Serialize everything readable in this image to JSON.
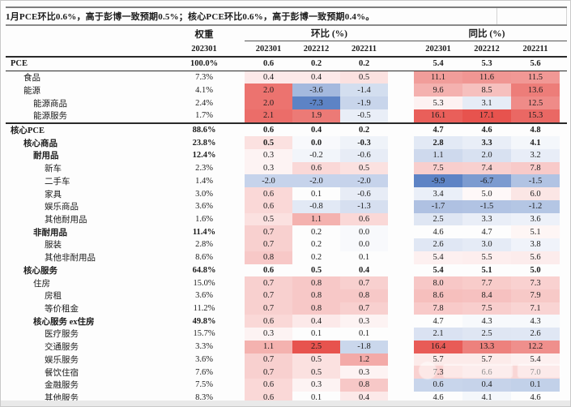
{
  "title": "1月PCE环比0.6%，高于彭博一致预期0.5%；核心PCE环比0.6%，高于彭博一致预期0.4%。",
  "colors": {
    "heat_red": "#e7534e",
    "heat_blue": "#5d83c5",
    "text": "#1c1c1c",
    "border_dark": "#2a2a2a"
  },
  "heat_scale": {
    "mom": {
      "min": -7.3,
      "mid": 0.2,
      "max": 2.5
    },
    "yoy": {
      "min": -9.9,
      "mid": 4.7,
      "max": 17.1
    }
  },
  "chart_data": {
    "type": "table",
    "title": "1月PCE环比0.6%，高于彭博一致预期0.5%；核心PCE环比0.6%，高于彭博一致预期0.4%。",
    "col_groups": {
      "weight_label": "权重",
      "mom_label": "环比 (%)",
      "yoy_label": "同比 (%)"
    },
    "weight_period": "202301",
    "periods": [
      "202301",
      "202212",
      "202211"
    ],
    "rows": [
      {
        "label": "PCE",
        "indent": 0,
        "weight": "100.0%",
        "mom": [
          0.6,
          0.2,
          0.2
        ],
        "yoy": [
          5.4,
          5.3,
          5.6
        ],
        "bold": true,
        "emph": true,
        "fill": false,
        "border_bottom": "thin"
      },
      {
        "label": "食品",
        "indent": 1,
        "weight": "7.3%",
        "mom": [
          0.4,
          0.4,
          0.5
        ],
        "yoy": [
          11.1,
          11.6,
          11.5
        ],
        "bold": false,
        "emph": false,
        "fill": true,
        "border_bottom": ""
      },
      {
        "label": "能源",
        "indent": 1,
        "weight": "4.1%",
        "mom": [
          2.0,
          -3.6,
          -1.4
        ],
        "yoy": [
          9.6,
          8.5,
          13.6
        ],
        "bold": false,
        "emph": false,
        "fill": true,
        "border_bottom": ""
      },
      {
        "label": "能源商品",
        "indent": 2,
        "weight": "2.4%",
        "mom": [
          2.0,
          -7.3,
          -1.9
        ],
        "yoy": [
          5.3,
          3.1,
          12.5
        ],
        "bold": false,
        "emph": false,
        "fill": true,
        "border_bottom": ""
      },
      {
        "label": "能源服务",
        "indent": 2,
        "weight": "1.7%",
        "mom": [
          2.1,
          1.9,
          -0.5
        ],
        "yoy": [
          16.1,
          17.1,
          15.3
        ],
        "bold": false,
        "emph": false,
        "fill": true,
        "border_bottom": "thick"
      },
      {
        "label": "核心PCE",
        "indent": 0,
        "weight": "88.6%",
        "mom": [
          0.6,
          0.4,
          0.2
        ],
        "yoy": [
          4.7,
          4.6,
          4.8
        ],
        "bold": true,
        "emph": true,
        "fill": false,
        "border_bottom": ""
      },
      {
        "label": "核心商品",
        "indent": 1,
        "weight": "23.8%",
        "mom": [
          0.5,
          0.0,
          -0.3
        ],
        "yoy": [
          2.8,
          3.3,
          4.1
        ],
        "bold": true,
        "emph": true,
        "fill": true,
        "border_bottom": ""
      },
      {
        "label": "耐用品",
        "indent": 2,
        "weight": "12.4%",
        "mom": [
          0.3,
          -0.2,
          -0.6
        ],
        "yoy": [
          1.1,
          2.0,
          3.2
        ],
        "bold": true,
        "emph": false,
        "fill": true,
        "border_bottom": ""
      },
      {
        "label": "新车",
        "indent": 3,
        "weight": "2.3%",
        "mom": [
          0.3,
          0.6,
          0.5
        ],
        "yoy": [
          7.5,
          7.4,
          7.8
        ],
        "bold": false,
        "emph": false,
        "fill": true,
        "border_bottom": ""
      },
      {
        "label": "二手车",
        "indent": 3,
        "weight": "1.4%",
        "mom": [
          -2.0,
          -2.0,
          -2.0
        ],
        "yoy": [
          -9.9,
          -6.7,
          -1.5
        ],
        "bold": false,
        "emph": false,
        "fill": true,
        "border_bottom": ""
      },
      {
        "label": "家具",
        "indent": 3,
        "weight": "3.0%",
        "mom": [
          0.6,
          0.1,
          -0.6
        ],
        "yoy": [
          3.4,
          5.0,
          6.0
        ],
        "bold": false,
        "emph": false,
        "fill": true,
        "border_bottom": ""
      },
      {
        "label": "娱乐商品",
        "indent": 3,
        "weight": "3.6%",
        "mom": [
          0.6,
          -0.8,
          -1.3
        ],
        "yoy": [
          -1.7,
          -1.5,
          -1.2
        ],
        "bold": false,
        "emph": false,
        "fill": true,
        "border_bottom": ""
      },
      {
        "label": "其他耐用品",
        "indent": 3,
        "weight": "1.6%",
        "mom": [
          0.5,
          1.1,
          0.6
        ],
        "yoy": [
          2.5,
          3.3,
          3.6
        ],
        "bold": false,
        "emph": false,
        "fill": true,
        "border_bottom": ""
      },
      {
        "label": "非耐用品",
        "indent": 2,
        "weight": "11.4%",
        "mom": [
          0.7,
          0.2,
          0.0
        ],
        "yoy": [
          4.6,
          4.7,
          5.1
        ],
        "bold": true,
        "emph": false,
        "fill": true,
        "border_bottom": ""
      },
      {
        "label": "服装",
        "indent": 3,
        "weight": "2.8%",
        "mom": [
          0.7,
          0.2,
          0.0
        ],
        "yoy": [
          2.6,
          3.0,
          3.8
        ],
        "bold": false,
        "emph": false,
        "fill": true,
        "border_bottom": ""
      },
      {
        "label": "其他非耐用品",
        "indent": 3,
        "weight": "8.6%",
        "mom": [
          0.8,
          0.2,
          0.1
        ],
        "yoy": [
          5.4,
          5.5,
          5.6
        ],
        "bold": false,
        "emph": false,
        "fill": true,
        "border_bottom": ""
      },
      {
        "label": "核心服务",
        "indent": 1,
        "weight": "64.8%",
        "mom": [
          0.6,
          0.5,
          0.4
        ],
        "yoy": [
          5.4,
          5.1,
          5.0
        ],
        "bold": true,
        "emph": true,
        "fill": false,
        "border_bottom": ""
      },
      {
        "label": "住房",
        "indent": 2,
        "weight": "15.0%",
        "mom": [
          0.7,
          0.8,
          0.7
        ],
        "yoy": [
          8.0,
          7.7,
          7.3
        ],
        "bold": false,
        "emph": false,
        "fill": true,
        "border_bottom": ""
      },
      {
        "label": "房租",
        "indent": 3,
        "weight": "3.6%",
        "mom": [
          0.7,
          0.8,
          0.8
        ],
        "yoy": [
          8.6,
          8.4,
          7.9
        ],
        "bold": false,
        "emph": false,
        "fill": true,
        "border_bottom": ""
      },
      {
        "label": "等价租金",
        "indent": 3,
        "weight": "11.2%",
        "mom": [
          0.7,
          0.8,
          0.7
        ],
        "yoy": [
          7.8,
          7.5,
          7.1
        ],
        "bold": false,
        "emph": false,
        "fill": true,
        "border_bottom": ""
      },
      {
        "label": "核心服务 ex住房",
        "indent": 2,
        "weight": "49.8%",
        "mom": [
          0.6,
          0.4,
          0.3
        ],
        "yoy": [
          4.7,
          4.3,
          4.3
        ],
        "bold": true,
        "emph": false,
        "fill": true,
        "border_bottom": ""
      },
      {
        "label": "医疗服务",
        "indent": 3,
        "weight": "15.7%",
        "mom": [
          0.3,
          0.1,
          0.1
        ],
        "yoy": [
          2.1,
          2.5,
          2.6
        ],
        "bold": false,
        "emph": false,
        "fill": true,
        "border_bottom": ""
      },
      {
        "label": "交通服务",
        "indent": 3,
        "weight": "3.3%",
        "mom": [
          1.1,
          2.5,
          -1.8
        ],
        "yoy": [
          16.4,
          13.3,
          12.2
        ],
        "bold": false,
        "emph": false,
        "fill": true,
        "border_bottom": ""
      },
      {
        "label": "娱乐服务",
        "indent": 3,
        "weight": "3.6%",
        "mom": [
          0.7,
          0.5,
          1.2
        ],
        "yoy": [
          5.7,
          5.7,
          5.4
        ],
        "bold": false,
        "emph": false,
        "fill": true,
        "border_bottom": ""
      },
      {
        "label": "餐饮住宿",
        "indent": 3,
        "weight": "7.6%",
        "mom": [
          0.7,
          0.5,
          0.3
        ],
        "yoy": [
          7.3,
          6.6,
          7.0
        ],
        "bold": false,
        "emph": false,
        "fill": true,
        "border_bottom": ""
      },
      {
        "label": "金融服务",
        "indent": 3,
        "weight": "7.5%",
        "mom": [
          0.6,
          0.3,
          0.8
        ],
        "yoy": [
          0.6,
          0.4,
          0.1
        ],
        "bold": false,
        "emph": false,
        "fill": true,
        "border_bottom": ""
      },
      {
        "label": "其他服务",
        "indent": 3,
        "weight": "8.3%",
        "mom": [
          0.6,
          0.1,
          0.4
        ],
        "yoy": [
          4.6,
          4.1,
          4.6
        ],
        "bold": false,
        "emph": false,
        "fill": true,
        "border_bottom": ""
      }
    ]
  }
}
